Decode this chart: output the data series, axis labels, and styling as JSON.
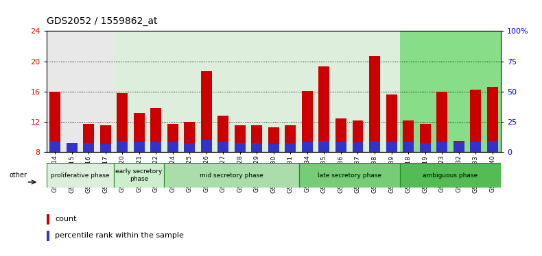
{
  "title": "GDS2052 / 1559862_at",
  "samples": [
    "GSM109814",
    "GSM109815",
    "GSM109816",
    "GSM109817",
    "GSM109820",
    "GSM109821",
    "GSM109822",
    "GSM109824",
    "GSM109825",
    "GSM109826",
    "GSM109827",
    "GSM109828",
    "GSM109829",
    "GSM109830",
    "GSM109831",
    "GSM109834",
    "GSM109835",
    "GSM109836",
    "GSM109837",
    "GSM109838",
    "GSM109839",
    "GSM109818",
    "GSM109819",
    "GSM109823",
    "GSM109832",
    "GSM109833",
    "GSM109840"
  ],
  "count_values": [
    16.0,
    8.8,
    11.7,
    11.6,
    15.8,
    13.2,
    13.8,
    11.7,
    12.0,
    18.7,
    12.8,
    11.6,
    11.6,
    11.3,
    11.6,
    16.1,
    19.3,
    12.5,
    12.2,
    20.7,
    15.6,
    12.2,
    11.7,
    16.0,
    9.5,
    16.3,
    16.6
  ],
  "percentile_values": [
    9.0,
    7.5,
    7.5,
    7.0,
    9.5,
    8.5,
    8.5,
    8.5,
    7.5,
    10.5,
    8.5,
    7.5,
    7.5,
    7.0,
    7.5,
    8.5,
    9.5,
    8.5,
    8.0,
    9.5,
    8.5,
    8.5,
    7.5,
    8.5,
    8.0,
    8.5,
    9.5
  ],
  "bar_bottom": 8.0,
  "ylim_left": [
    8,
    24
  ],
  "ylim_right": [
    0,
    100
  ],
  "yticks_left": [
    8,
    12,
    16,
    20,
    24
  ],
  "yticks_right": [
    0,
    25,
    50,
    75,
    100
  ],
  "ytick_labels_right": [
    "0",
    "25",
    "50",
    "75",
    "100%"
  ],
  "count_color": "#cc0000",
  "percentile_color": "#3333cc",
  "grid_yticks": [
    12,
    16,
    20
  ],
  "phase_groups": [
    {
      "label": "proliferative phase",
      "start": 0,
      "end": 4,
      "color": "#ddeedd"
    },
    {
      "label": "early secretory\nphase",
      "start": 4,
      "end": 7,
      "color": "#cceecc"
    },
    {
      "label": "mid secretory phase",
      "start": 7,
      "end": 15,
      "color": "#aaddaa"
    },
    {
      "label": "late secretory phase",
      "start": 15,
      "end": 21,
      "color": "#88cc88"
    },
    {
      "label": "ambiguous phase",
      "start": 21,
      "end": 27,
      "color": "#66bb66"
    }
  ],
  "col_colors": [
    "#e8e8e8",
    "#e8e8e8",
    "#e8e8e8",
    "#e8e8e8",
    "#ddeedd",
    "#ddeedd",
    "#ddeedd",
    "#ddeedd",
    "#ddeedd",
    "#ddeedd",
    "#ddeedd",
    "#ddeedd",
    "#ddeedd",
    "#ddeedd",
    "#ddeedd",
    "#ddeedd",
    "#ddeedd",
    "#ddeedd",
    "#ddeedd",
    "#ddeedd",
    "#ddeedd",
    "#88dd88",
    "#88dd88",
    "#88dd88",
    "#88dd88",
    "#88dd88",
    "#88dd88"
  ],
  "title_fontsize": 10,
  "tick_fontsize": 6.5
}
